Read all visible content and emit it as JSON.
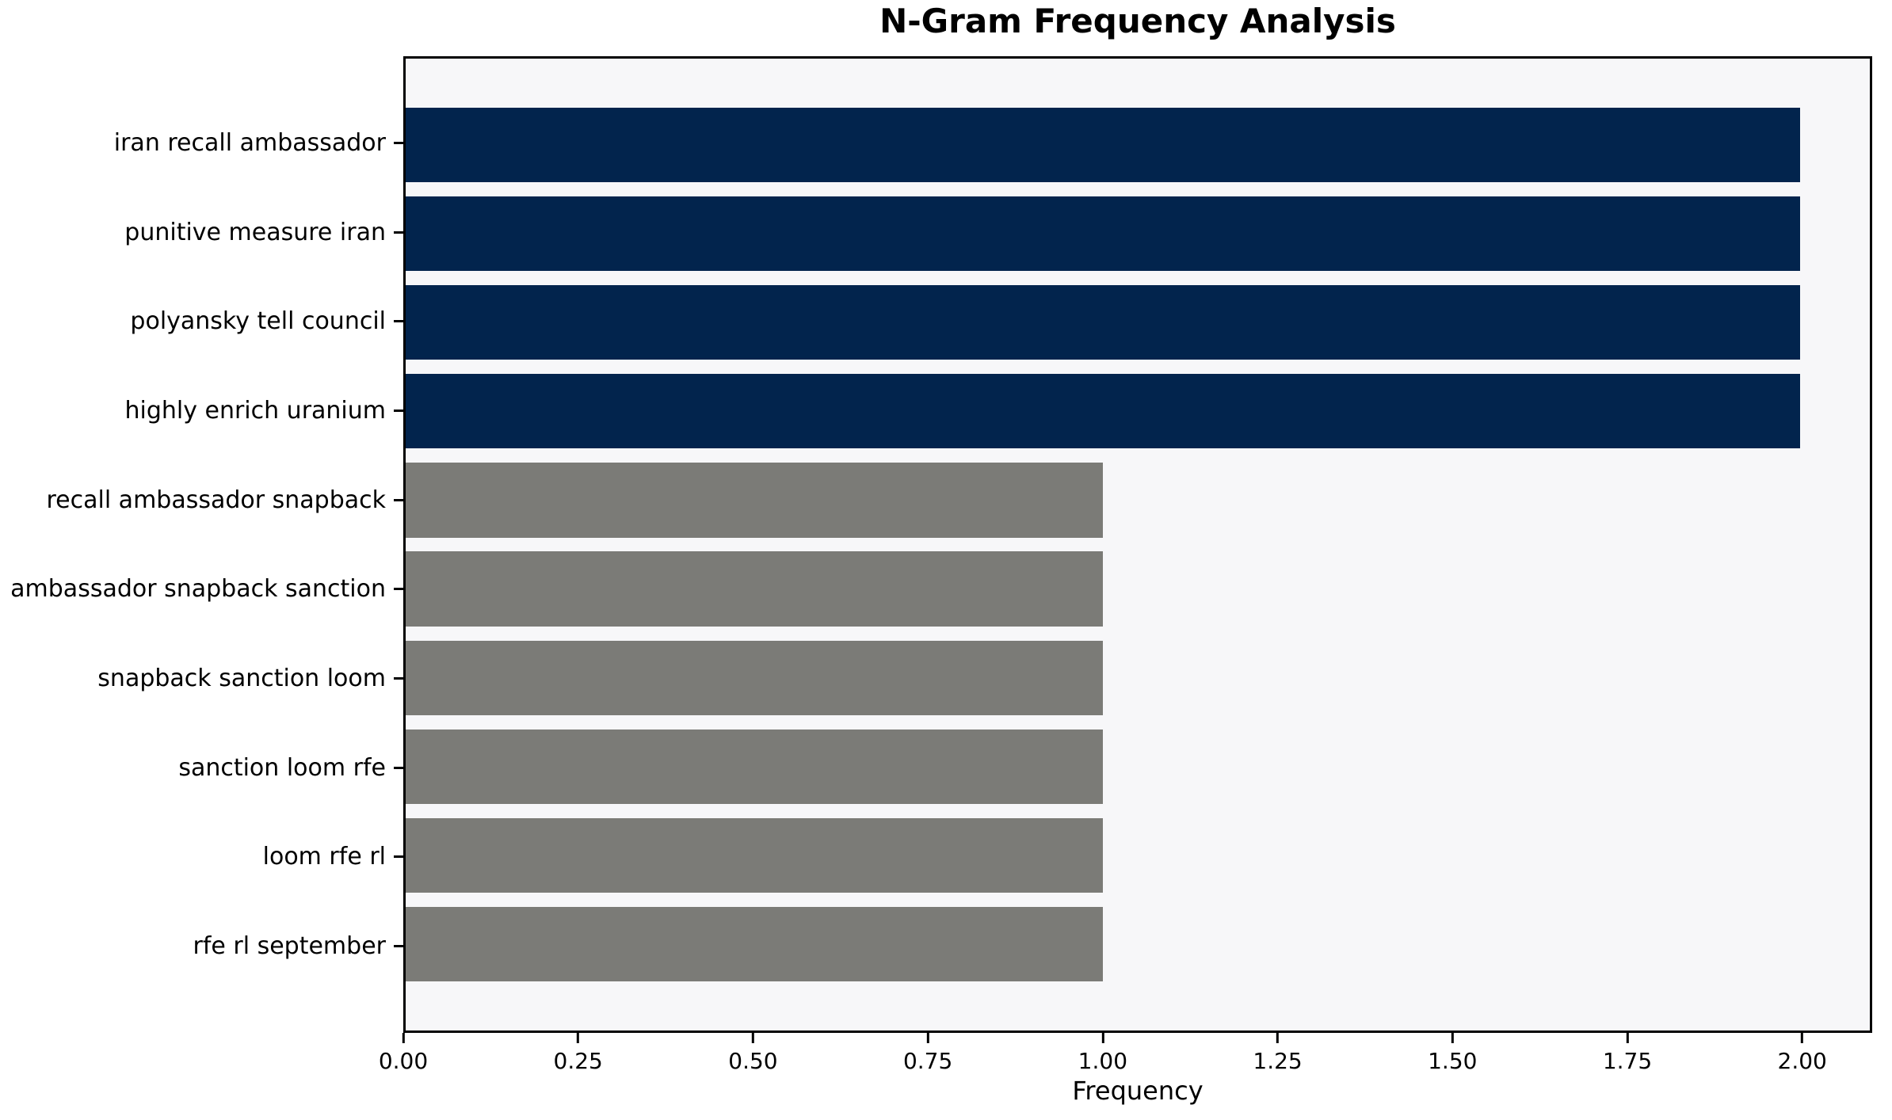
{
  "chart_data": {
    "type": "bar",
    "orientation": "horizontal",
    "title": "N-Gram Frequency Analysis",
    "xlabel": "Frequency",
    "ylabel": "",
    "categories": [
      "iran recall ambassador",
      "punitive measure iran",
      "polyansky tell council",
      "highly enrich uranium",
      "recall ambassador snapback",
      "ambassador snapback sanction",
      "snapback sanction loom",
      "sanction loom rfe",
      "loom rfe rl",
      "rfe rl september"
    ],
    "values": [
      2,
      2,
      2,
      2,
      1,
      1,
      1,
      1,
      1,
      1
    ],
    "bar_colors": [
      "#02244d",
      "#02244d",
      "#02244d",
      "#02244d",
      "#7b7b77",
      "#7b7b77",
      "#7b7b77",
      "#7b7b77",
      "#7b7b77",
      "#7b7b77"
    ],
    "xlim": [
      0,
      2.1
    ],
    "xtick_values": [
      0,
      0.25,
      0.5,
      0.75,
      1,
      1.25,
      1.5,
      1.75,
      2
    ],
    "xtick_labels": [
      "0.00",
      "0.25",
      "0.50",
      "0.75",
      "1.00",
      "1.25",
      "1.50",
      "1.75",
      "2.00"
    ],
    "grid": false,
    "legend_position": "none",
    "colors": {
      "bar_high": "#02244d",
      "bar_low": "#7b7b77",
      "plot_background": "#f7f7f9",
      "figure_background": "#ffffff",
      "spine": "#000000",
      "text": "#000000"
    }
  }
}
